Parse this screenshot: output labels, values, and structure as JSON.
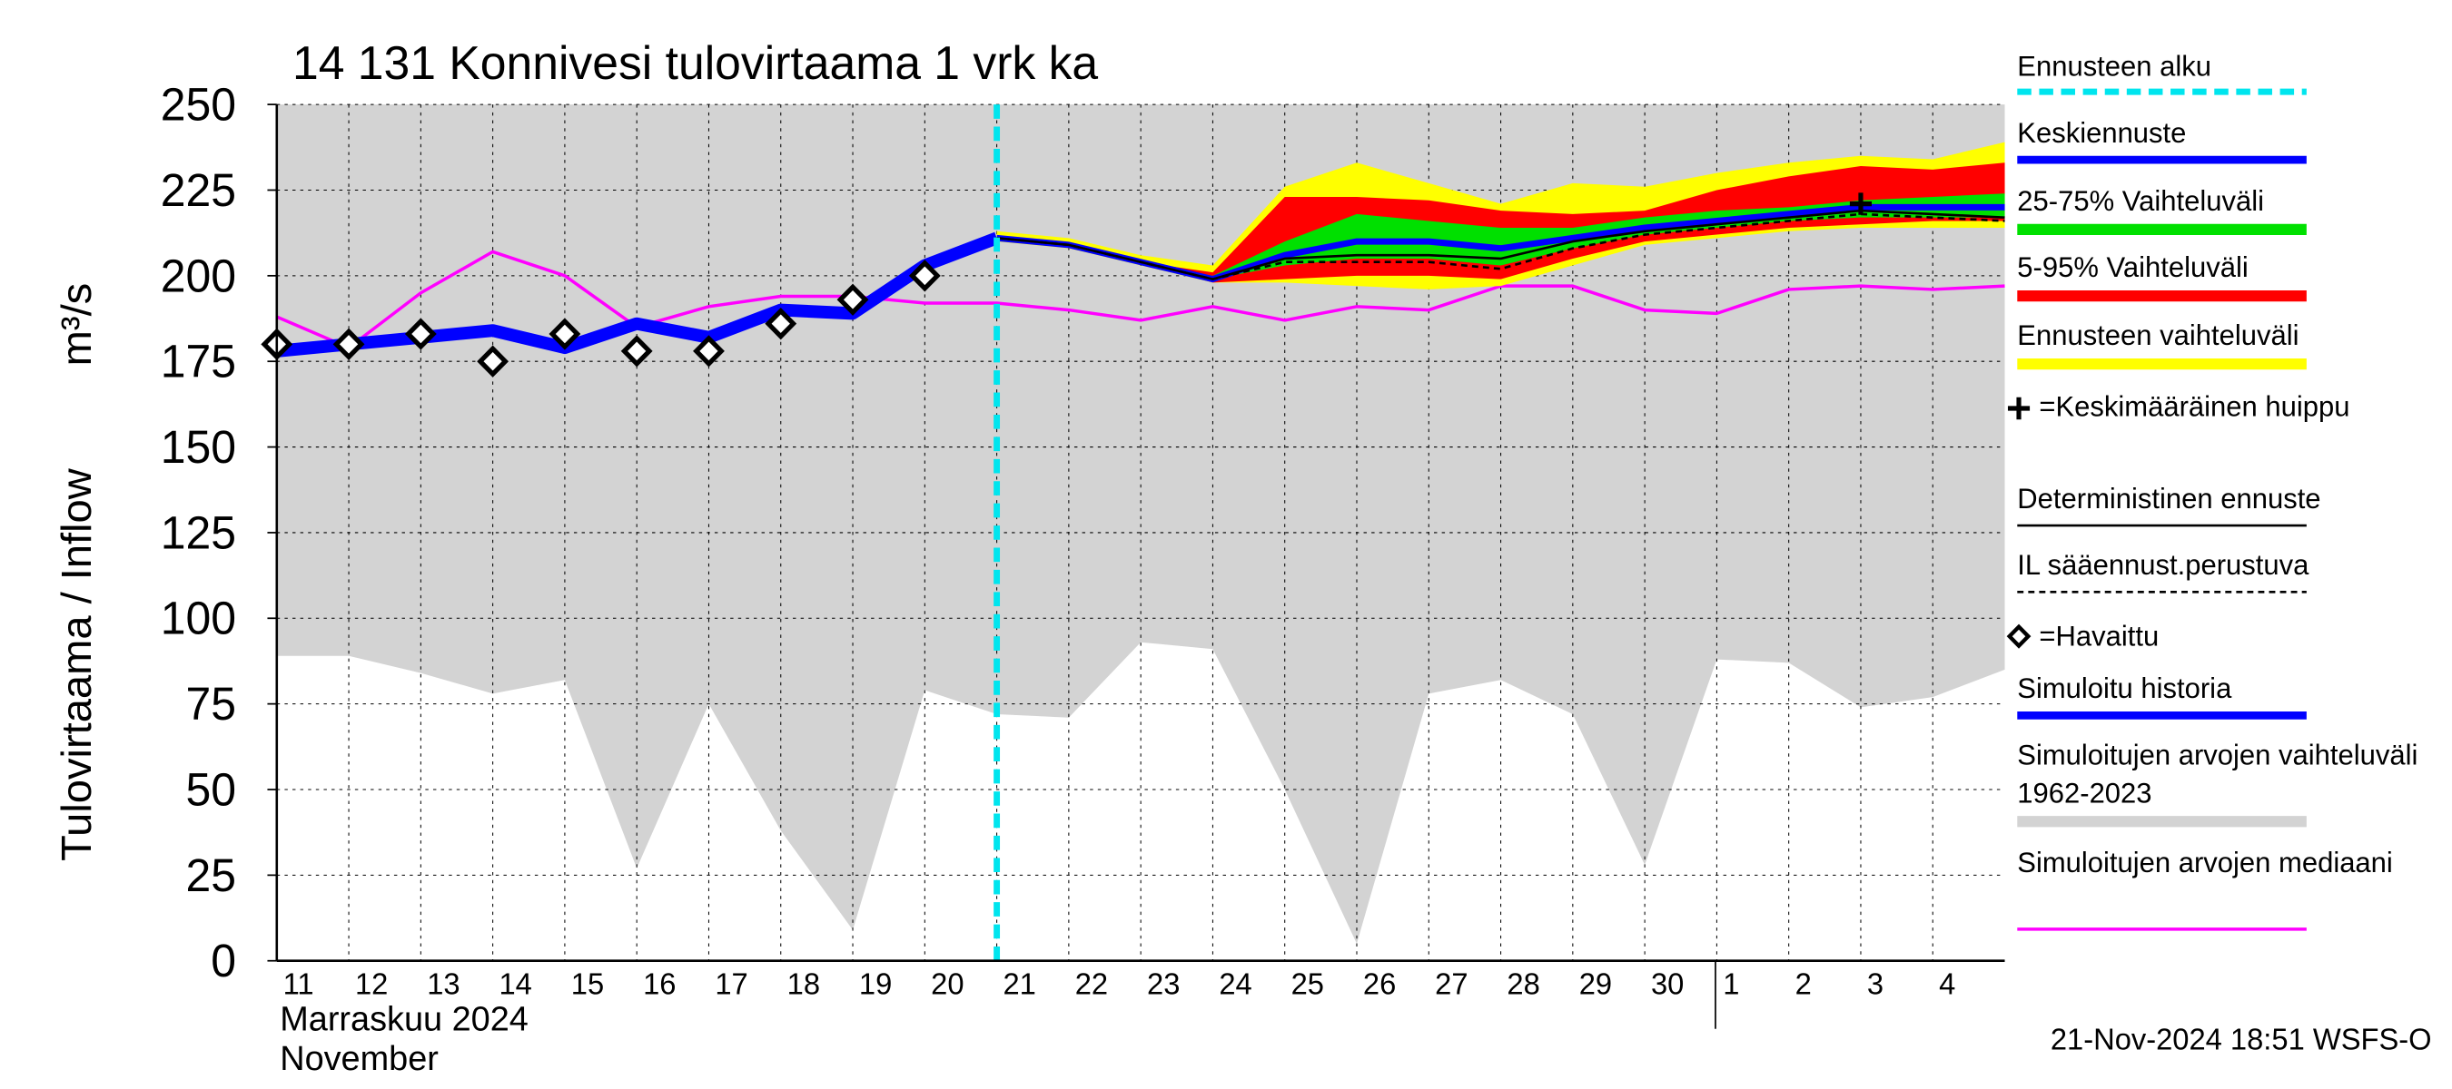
{
  "chart_data": {
    "type": "line",
    "title": "14 131 Konnivesi tulovirtaama 1 vrk ka",
    "y_label": "Tulovirtaama / Inflow",
    "y_unit": "m³/s",
    "x_label": "Marraskuu 2024",
    "x_label_en": "November",
    "timestamp": "21-Nov-2024 18:51 WSFS-O",
    "grid": true,
    "categories": [
      "11",
      "12",
      "13",
      "14",
      "15",
      "16",
      "17",
      "18",
      "19",
      "20",
      "21",
      "22",
      "23",
      "24",
      "25",
      "26",
      "27",
      "28",
      "29",
      "30",
      "1",
      "2",
      "3",
      "4",
      null
    ],
    "ylim": [
      0,
      250
    ],
    "yticks": [
      0,
      25,
      50,
      75,
      100,
      125,
      150,
      175,
      200,
      225,
      250
    ],
    "series": [
      {
        "name": "Ennusteen alku",
        "color": "#00e5ee",
        "kind": "vline",
        "x": "21"
      },
      {
        "name": "Keskiennuste",
        "color": "#0000ff",
        "kind": "line",
        "width": 4,
        "values": [
          null,
          null,
          null,
          null,
          null,
          null,
          null,
          null,
          null,
          null,
          211,
          209,
          204,
          199,
          206,
          210,
          210,
          208,
          211,
          214,
          216,
          218,
          220,
          220,
          220
        ]
      },
      {
        "name": "25-75% Vaihteluväli",
        "color": "#00e000",
        "kind": "band",
        "low": [
          null,
          null,
          null,
          null,
          null,
          null,
          null,
          null,
          null,
          null,
          211,
          209,
          204,
          199,
          203,
          205,
          205,
          203,
          208,
          212,
          214,
          216,
          217,
          217,
          217
        ],
        "high": [
          null,
          null,
          null,
          null,
          null,
          null,
          null,
          null,
          null,
          null,
          211,
          209,
          204,
          200,
          210,
          218,
          216,
          214,
          214,
          217,
          219,
          220,
          222,
          223,
          224
        ]
      },
      {
        "name": "5-95% Vaihteluväli",
        "color": "#ff0000",
        "kind": "band",
        "low": [
          null,
          null,
          null,
          null,
          null,
          null,
          null,
          null,
          null,
          null,
          211,
          209,
          204,
          198,
          199,
          200,
          200,
          199,
          205,
          210,
          212,
          214,
          215,
          216,
          216
        ],
        "high": [
          null,
          null,
          null,
          null,
          null,
          null,
          null,
          null,
          null,
          null,
          211,
          209,
          204,
          201,
          223,
          223,
          222,
          219,
          218,
          219,
          225,
          229,
          232,
          231,
          233
        ]
      },
      {
        "name": "Ennusteen vaihteluväli",
        "color": "#ffff00",
        "kind": "band",
        "low": [
          null,
          null,
          null,
          null,
          null,
          null,
          null,
          null,
          null,
          null,
          210,
          208,
          203,
          198,
          198,
          197,
          196,
          197,
          203,
          209,
          211,
          213,
          214,
          214,
          214
        ],
        "high": [
          null,
          null,
          null,
          null,
          null,
          null,
          null,
          null,
          null,
          null,
          213,
          211,
          206,
          203,
          226,
          233,
          227,
          221,
          227,
          226,
          230,
          233,
          235,
          234,
          239
        ]
      },
      {
        "name": "=Keskimääräinen huippu",
        "color": "#000000",
        "kind": "peak",
        "values": [
          null,
          null,
          null,
          null,
          null,
          null,
          null,
          null,
          null,
          null,
          null,
          null,
          null,
          null,
          null,
          null,
          null,
          null,
          null,
          null,
          null,
          null,
          221,
          null,
          null
        ]
      },
      {
        "name": "Deterministinen ennuste",
        "color": "#000000",
        "kind": "line",
        "width": 1.5,
        "values": [
          null,
          null,
          null,
          null,
          null,
          null,
          null,
          null,
          null,
          null,
          211,
          209,
          204,
          199,
          205,
          206,
          206,
          205,
          210,
          213,
          215,
          217,
          219,
          218,
          217
        ]
      },
      {
        "name": "IL sääennust.perustuva",
        "color": "#000000",
        "kind": "dashed",
        "values": [
          null,
          null,
          null,
          null,
          null,
          null,
          null,
          null,
          null,
          null,
          211,
          209,
          204,
          199,
          204,
          204,
          204,
          202,
          208,
          212,
          214,
          216,
          218,
          217,
          216
        ]
      },
      {
        "name": "=Havaittu",
        "color": "#000000",
        "kind": "points",
        "values": [
          180,
          180,
          183,
          175,
          183,
          178,
          178,
          186,
          193,
          200,
          null,
          null,
          null,
          null,
          null,
          null,
          null,
          null,
          null,
          null,
          null,
          null,
          null,
          null,
          null
        ]
      },
      {
        "name": "Simuloitu historia",
        "color": "#0000ff",
        "kind": "line",
        "width": 8,
        "values": [
          178,
          180,
          182,
          184,
          179,
          186,
          182,
          190,
          189,
          203,
          211,
          null,
          null,
          null,
          null,
          null,
          null,
          null,
          null,
          null,
          null,
          null,
          null,
          null,
          null
        ]
      },
      {
        "name": "Simuloitujen arvojen vaihteluväli 1962-2023",
        "color": "#d3d3d3",
        "kind": "band",
        "low": [
          89,
          89,
          84,
          78,
          82,
          27,
          75,
          38,
          9,
          79,
          72,
          71,
          93,
          91,
          50,
          5,
          78,
          82,
          72,
          28,
          88,
          87,
          74,
          77,
          85
        ],
        "high": [
          250,
          250,
          250,
          250,
          250,
          250,
          250,
          250,
          250,
          250,
          250,
          250,
          250,
          250,
          250,
          250,
          250,
          250,
          250,
          250,
          250,
          250,
          250,
          250,
          250
        ]
      },
      {
        "name": "Simuloitujen arvojen mediaani",
        "color": "#ff00ff",
        "kind": "line",
        "width": 2,
        "values": [
          188,
          179,
          195,
          207,
          200,
          185,
          191,
          194,
          194,
          192,
          192,
          190,
          187,
          191,
          187,
          191,
          190,
          197,
          197,
          190,
          189,
          196,
          197,
          196,
          197
        ]
      }
    ]
  }
}
